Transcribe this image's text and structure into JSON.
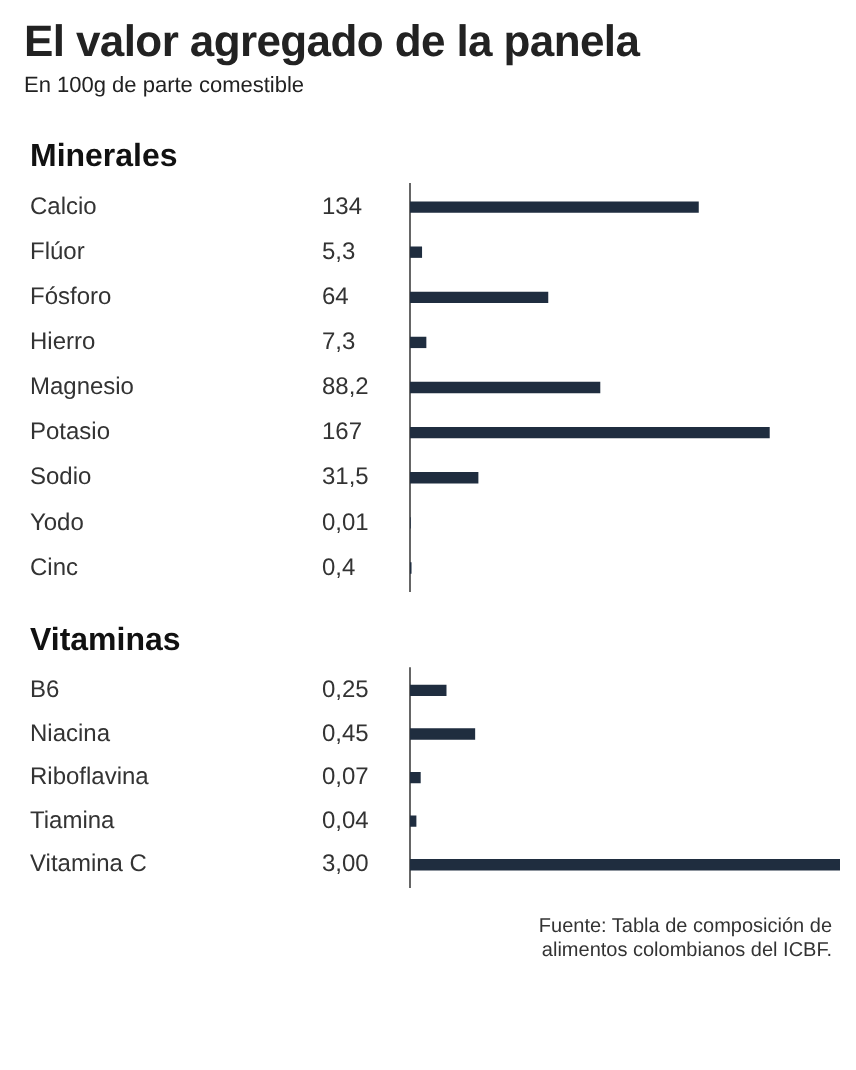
{
  "chart_data": [
    {
      "type": "other",
      "title": "El valor agregado de la panela",
      "subtitle": "En 100g de parte comestible"
    },
    {
      "type": "bar",
      "orientation": "horizontal",
      "title": "Minerales",
      "color": "#1f2d3f",
      "categories": [
        "Calcio",
        "Flúor",
        "Fósforo",
        "Hierro",
        "Magnesio",
        "Potasio",
        "Sodio",
        "Yodo",
        "Cinc"
      ],
      "values": [
        134,
        5.3,
        64,
        7.3,
        88.2,
        167,
        31.5,
        0.01,
        0.4
      ],
      "value_labels": [
        "134",
        "5,3",
        "64",
        "7,3",
        "88,2",
        "167",
        "31,5",
        "0,01",
        "0,4"
      ]
    },
    {
      "type": "bar",
      "orientation": "horizontal",
      "title": "Vitaminas",
      "color": "#1f2d3f",
      "categories": [
        "B6",
        "Niacina",
        "Riboflavina",
        "Tiamina",
        "Vitamina C"
      ],
      "values": [
        0.25,
        0.45,
        0.07,
        0.04,
        3.0
      ],
      "value_labels": [
        "0,25",
        "0,45",
        "0,07",
        "0,04",
        "3,00"
      ],
      "annotations": [
        "Fuente: Tabla de composición de alimentos colombianos del ICBF."
      ]
    }
  ]
}
